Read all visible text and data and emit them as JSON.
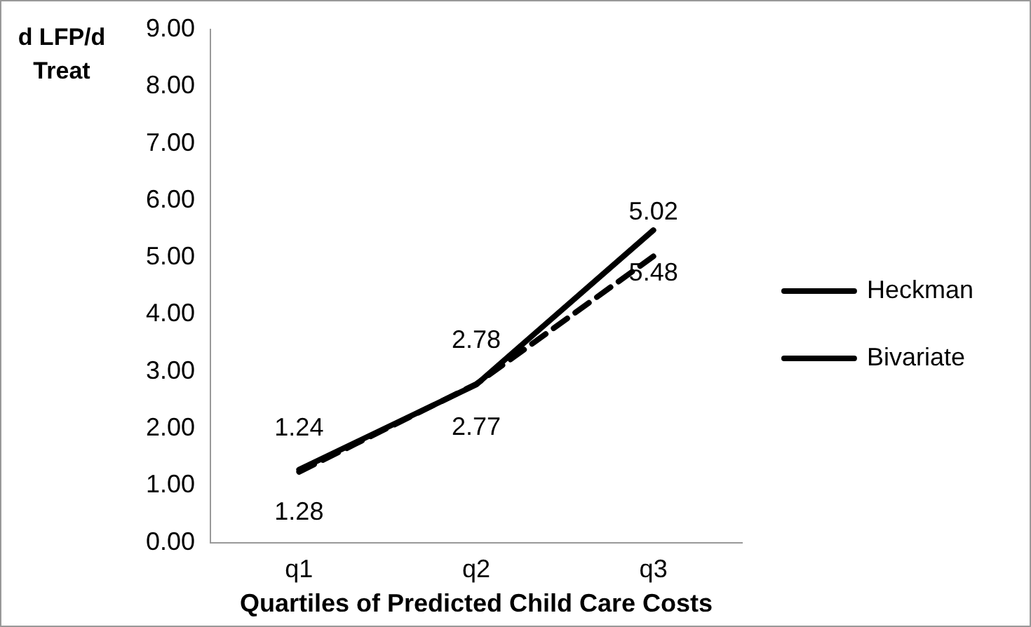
{
  "chart_data": {
    "type": "line",
    "xlabel": "Quartiles of Predicted Child Care Costs",
    "ylabel": "d LFP/d Treat",
    "categories": [
      "q1",
      "q2",
      "q3"
    ],
    "series": [
      {
        "name": "Heckman",
        "color": "#000000",
        "line_style": "dashed",
        "values": [
          1.24,
          2.78,
          5.02
        ]
      },
      {
        "name": "Bivariate",
        "color": "#000000",
        "line_style": "solid",
        "values": [
          1.28,
          2.77,
          5.48
        ]
      }
    ],
    "ylim": [
      0,
      9
    ],
    "yticks": [
      {
        "value": 0,
        "label": "0.00"
      },
      {
        "value": 1,
        "label": "1.00"
      },
      {
        "value": 2,
        "label": "2.00"
      },
      {
        "value": 3,
        "label": "3.00"
      },
      {
        "value": 4,
        "label": "4.00"
      },
      {
        "value": 5,
        "label": "5.00"
      },
      {
        "value": 6,
        "label": "6.00"
      },
      {
        "value": 7,
        "label": "7.00"
      },
      {
        "value": 8,
        "label": "8.00"
      },
      {
        "value": 9,
        "label": "9.00"
      }
    ],
    "grid": false,
    "legend": "right",
    "marker": "none",
    "data_labels": true
  }
}
